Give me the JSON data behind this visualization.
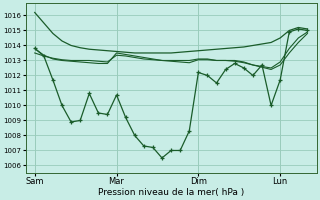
{
  "background_color": "#c8ede6",
  "grid_color": "#99ccbb",
  "line_color": "#1a5c2a",
  "ylabel_ticks": [
    1006,
    1007,
    1008,
    1009,
    1010,
    1011,
    1012,
    1013,
    1014,
    1015,
    1016
  ],
  "xlabel": "Pression niveau de la mer( hPa )",
  "xtick_labels": [
    "Sam",
    "Mar",
    "Dim",
    "Lun"
  ],
  "ylim": [
    1005.5,
    1016.8
  ],
  "xlim": [
    -1,
    31
  ],
  "line1_x": [
    0,
    1,
    2,
    3,
    4,
    5,
    6,
    7,
    8,
    9,
    10,
    11,
    12,
    13,
    14,
    15,
    16,
    17,
    18,
    19,
    20,
    21,
    22,
    23,
    24,
    25,
    26,
    27,
    28,
    29,
    30
  ],
  "line1_y": [
    1016.2,
    1015.5,
    1014.8,
    1014.3,
    1014.0,
    1013.85,
    1013.75,
    1013.7,
    1013.65,
    1013.6,
    1013.55,
    1013.5,
    1013.5,
    1013.5,
    1013.5,
    1013.5,
    1013.55,
    1013.6,
    1013.65,
    1013.7,
    1013.75,
    1013.8,
    1013.85,
    1013.9,
    1014.0,
    1014.1,
    1014.2,
    1014.5,
    1015.0,
    1015.2,
    1015.1
  ],
  "line2_x": [
    0,
    1,
    2,
    3,
    4,
    5,
    6,
    7,
    8,
    9,
    10,
    11,
    12,
    13,
    14,
    15,
    16,
    17,
    18,
    19,
    20,
    21,
    22,
    23,
    24,
    25,
    26,
    27,
    28,
    29,
    30
  ],
  "line2_y": [
    1013.8,
    1013.35,
    1013.1,
    1013.0,
    1012.95,
    1012.9,
    1012.85,
    1012.8,
    1012.8,
    1013.5,
    1013.4,
    1013.3,
    1013.2,
    1013.1,
    1013.0,
    1013.0,
    1013.0,
    1013.0,
    1013.1,
    1013.1,
    1013.0,
    1013.0,
    1013.0,
    1012.9,
    1012.7,
    1012.6,
    1012.5,
    1012.9,
    1013.8,
    1014.5,
    1014.9
  ],
  "line3_x": [
    0,
    1,
    2,
    3,
    4,
    5,
    6,
    7,
    8,
    9,
    10,
    11,
    12,
    13,
    14,
    15,
    16,
    17,
    18,
    19,
    20,
    21,
    22,
    23,
    24,
    25,
    26,
    27,
    28,
    29,
    30
  ],
  "line3_y": [
    1013.5,
    1013.3,
    1013.15,
    1013.05,
    1013.0,
    1013.0,
    1013.0,
    1012.95,
    1012.9,
    1013.35,
    1013.3,
    1013.2,
    1013.1,
    1013.05,
    1013.0,
    1012.95,
    1012.9,
    1012.85,
    1013.05,
    1013.05,
    1013.0,
    1013.0,
    1012.95,
    1012.85,
    1012.7,
    1012.55,
    1012.4,
    1012.7,
    1013.5,
    1014.2,
    1014.8
  ],
  "line4_x": [
    0,
    1,
    2,
    3,
    4,
    5,
    6,
    7,
    8,
    9,
    10,
    11,
    12,
    13,
    14,
    15,
    16,
    17,
    18,
    19,
    20,
    21,
    22,
    23,
    24,
    25,
    26,
    27,
    28,
    29,
    30
  ],
  "line4_y": [
    1013.8,
    1013.3,
    1011.7,
    1010.0,
    1008.9,
    1009.0,
    1010.8,
    1009.5,
    1009.4,
    1010.7,
    1009.2,
    1008.0,
    1007.3,
    1007.2,
    1006.5,
    1007.0,
    1007.0,
    1008.3,
    1012.2,
    1012.0,
    1011.5,
    1012.4,
    1012.8,
    1012.5,
    1012.0,
    1012.7,
    1010.0,
    1011.7,
    1014.9,
    1015.1,
    1015.0
  ],
  "xtick_positions": [
    0,
    9,
    18,
    27
  ],
  "marker_indices": [
    0,
    1,
    2,
    3,
    4,
    5,
    6,
    7,
    8,
    9,
    10,
    11,
    12,
    13,
    14,
    15,
    16,
    17,
    18,
    19,
    20,
    21,
    22,
    23,
    24,
    25,
    26,
    27,
    28,
    29,
    30
  ]
}
